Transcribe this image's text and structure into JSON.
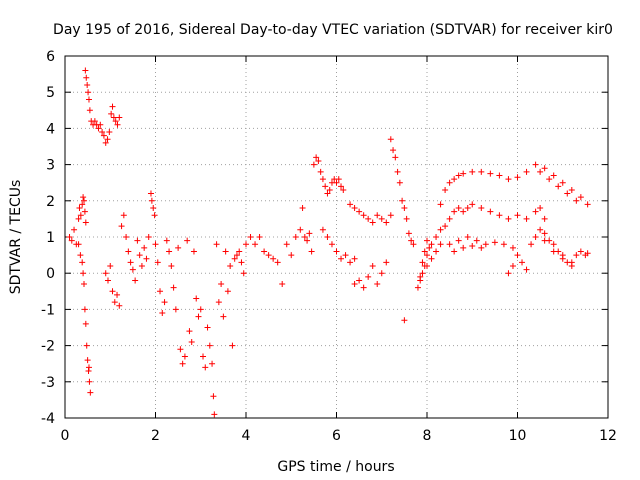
{
  "chart_data": {
    "type": "scatter",
    "title": "Day 195 of 2016, Sidereal Day-to-day VTEC variation (SDTVAR) for receiver kir0",
    "xlabel": "GPS time / hours",
    "ylabel": "SDTVAR / TECUs",
    "xlim": [
      0,
      12
    ],
    "ylim": [
      -4,
      6
    ],
    "xticks": [
      0,
      2,
      4,
      6,
      8,
      10,
      12
    ],
    "yticks": [
      -4,
      -3,
      -2,
      -1,
      0,
      1,
      2,
      3,
      4,
      5,
      6
    ],
    "grid": true,
    "marker": "plus",
    "color": "#ff0000",
    "series": [
      {
        "name": "kir0",
        "points": [
          [
            0.1,
            1.0
          ],
          [
            0.15,
            0.9
          ],
          [
            0.2,
            1.2
          ],
          [
            0.25,
            0.8
          ],
          [
            0.3,
            1.5
          ],
          [
            0.32,
            1.8
          ],
          [
            0.35,
            1.6
          ],
          [
            0.38,
            1.9
          ],
          [
            0.4,
            2.1
          ],
          [
            0.42,
            2.0
          ],
          [
            0.44,
            1.7
          ],
          [
            0.46,
            1.4
          ],
          [
            0.3,
            0.8
          ],
          [
            0.34,
            0.5
          ],
          [
            0.38,
            0.3
          ],
          [
            0.4,
            0.0
          ],
          [
            0.42,
            -0.3
          ],
          [
            0.44,
            -1.0
          ],
          [
            0.46,
            -1.4
          ],
          [
            0.48,
            -2.0
          ],
          [
            0.5,
            -2.4
          ],
          [
            0.52,
            -2.7
          ],
          [
            0.54,
            -3.0
          ],
          [
            0.56,
            -3.3
          ],
          [
            0.53,
            -2.6
          ],
          [
            0.45,
            5.6
          ],
          [
            0.47,
            5.4
          ],
          [
            0.49,
            5.2
          ],
          [
            0.51,
            5.0
          ],
          [
            0.53,
            4.8
          ],
          [
            0.55,
            4.5
          ],
          [
            0.58,
            4.2
          ],
          [
            0.62,
            4.1
          ],
          [
            0.66,
            4.2
          ],
          [
            0.7,
            4.1
          ],
          [
            0.74,
            4.0
          ],
          [
            0.78,
            4.1
          ],
          [
            0.82,
            3.9
          ],
          [
            0.86,
            3.8
          ],
          [
            0.9,
            3.6
          ],
          [
            0.94,
            3.7
          ],
          [
            0.98,
            3.9
          ],
          [
            1.02,
            4.4
          ],
          [
            1.05,
            4.6
          ],
          [
            1.08,
            4.3
          ],
          [
            1.12,
            4.2
          ],
          [
            1.16,
            4.1
          ],
          [
            1.2,
            4.3
          ],
          [
            0.9,
            0.0
          ],
          [
            0.95,
            -0.2
          ],
          [
            1.0,
            0.2
          ],
          [
            1.05,
            -0.5
          ],
          [
            1.1,
            -0.8
          ],
          [
            1.15,
            -0.6
          ],
          [
            1.2,
            -0.9
          ],
          [
            1.25,
            1.3
          ],
          [
            1.3,
            1.6
          ],
          [
            1.35,
            1.0
          ],
          [
            1.4,
            0.6
          ],
          [
            1.45,
            0.3
          ],
          [
            1.5,
            0.1
          ],
          [
            1.55,
            -0.2
          ],
          [
            1.6,
            0.9
          ],
          [
            1.65,
            0.5
          ],
          [
            1.7,
            0.2
          ],
          [
            1.75,
            0.7
          ],
          [
            1.8,
            0.4
          ],
          [
            1.85,
            1.0
          ],
          [
            1.9,
            2.2
          ],
          [
            1.92,
            2.0
          ],
          [
            1.95,
            1.8
          ],
          [
            1.98,
            1.6
          ],
          [
            2.0,
            0.8
          ],
          [
            2.05,
            0.3
          ],
          [
            2.1,
            -0.5
          ],
          [
            2.15,
            -1.1
          ],
          [
            2.2,
            -0.8
          ],
          [
            2.25,
            0.9
          ],
          [
            2.3,
            0.6
          ],
          [
            2.35,
            0.2
          ],
          [
            2.4,
            -0.4
          ],
          [
            2.45,
            -1.0
          ],
          [
            2.5,
            0.7
          ],
          [
            2.55,
            -2.1
          ],
          [
            2.6,
            -2.5
          ],
          [
            2.65,
            -2.3
          ],
          [
            2.7,
            0.9
          ],
          [
            2.75,
            -1.6
          ],
          [
            2.8,
            -1.9
          ],
          [
            2.85,
            0.6
          ],
          [
            2.9,
            -0.7
          ],
          [
            2.95,
            -1.2
          ],
          [
            3.0,
            -1.0
          ],
          [
            3.05,
            -2.3
          ],
          [
            3.1,
            -2.6
          ],
          [
            3.15,
            -1.5
          ],
          [
            3.2,
            -2.0
          ],
          [
            3.25,
            -2.5
          ],
          [
            3.28,
            -3.4
          ],
          [
            3.3,
            -3.9
          ],
          [
            3.35,
            0.8
          ],
          [
            3.4,
            -0.8
          ],
          [
            3.45,
            -0.3
          ],
          [
            3.5,
            -1.2
          ],
          [
            3.55,
            0.6
          ],
          [
            3.6,
            -0.5
          ],
          [
            3.65,
            0.2
          ],
          [
            3.7,
            -2.0
          ],
          [
            3.75,
            0.4
          ],
          [
            3.8,
            0.5
          ],
          [
            3.85,
            0.6
          ],
          [
            3.9,
            0.3
          ],
          [
            3.95,
            0.0
          ],
          [
            4.0,
            0.8
          ],
          [
            4.1,
            1.0
          ],
          [
            4.2,
            0.8
          ],
          [
            4.3,
            1.0
          ],
          [
            4.4,
            0.6
          ],
          [
            4.5,
            0.5
          ],
          [
            4.6,
            0.4
          ],
          [
            4.7,
            0.3
          ],
          [
            4.8,
            -0.3
          ],
          [
            4.9,
            0.8
          ],
          [
            5.0,
            0.5
          ],
          [
            5.1,
            1.0
          ],
          [
            5.2,
            1.2
          ],
          [
            5.25,
            1.8
          ],
          [
            5.3,
            1.0
          ],
          [
            5.35,
            0.9
          ],
          [
            5.4,
            1.1
          ],
          [
            5.45,
            0.6
          ],
          [
            5.5,
            3.0
          ],
          [
            5.55,
            3.2
          ],
          [
            5.6,
            3.1
          ],
          [
            5.65,
            2.8
          ],
          [
            5.7,
            2.6
          ],
          [
            5.75,
            2.4
          ],
          [
            5.8,
            2.2
          ],
          [
            5.85,
            2.3
          ],
          [
            5.9,
            2.5
          ],
          [
            5.95,
            2.6
          ],
          [
            6.0,
            2.5
          ],
          [
            6.05,
            2.6
          ],
          [
            6.1,
            2.4
          ],
          [
            6.15,
            2.3
          ],
          [
            5.7,
            1.2
          ],
          [
            5.8,
            1.0
          ],
          [
            5.9,
            0.8
          ],
          [
            6.0,
            0.6
          ],
          [
            6.1,
            0.4
          ],
          [
            6.2,
            0.5
          ],
          [
            6.3,
            0.3
          ],
          [
            6.4,
            0.4
          ],
          [
            6.3,
            1.9
          ],
          [
            6.4,
            1.8
          ],
          [
            6.5,
            1.7
          ],
          [
            6.6,
            1.6
          ],
          [
            6.7,
            1.5
          ],
          [
            6.8,
            1.4
          ],
          [
            6.9,
            1.6
          ],
          [
            7.0,
            1.5
          ],
          [
            7.1,
            1.4
          ],
          [
            7.2,
            1.6
          ],
          [
            6.4,
            -0.3
          ],
          [
            6.5,
            -0.2
          ],
          [
            6.6,
            -0.4
          ],
          [
            6.7,
            -0.1
          ],
          [
            6.8,
            0.2
          ],
          [
            6.9,
            -0.3
          ],
          [
            7.0,
            0.0
          ],
          [
            7.1,
            0.3
          ],
          [
            7.2,
            3.7
          ],
          [
            7.25,
            3.4
          ],
          [
            7.3,
            3.2
          ],
          [
            7.35,
            2.8
          ],
          [
            7.4,
            2.5
          ],
          [
            7.45,
            2.0
          ],
          [
            7.5,
            1.8
          ],
          [
            7.55,
            1.5
          ],
          [
            7.6,
            1.1
          ],
          [
            7.65,
            0.9
          ],
          [
            7.7,
            0.8
          ],
          [
            7.5,
            -1.3
          ],
          [
            7.8,
            -0.4
          ],
          [
            7.85,
            -0.2
          ],
          [
            7.9,
            0.3
          ],
          [
            7.95,
            0.6
          ],
          [
            8.0,
            0.9
          ],
          [
            8.05,
            0.7
          ],
          [
            8.1,
            0.8
          ],
          [
            8.2,
            1.0
          ],
          [
            8.3,
            1.2
          ],
          [
            8.4,
            1.3
          ],
          [
            8.5,
            1.5
          ],
          [
            8.6,
            1.7
          ],
          [
            8.7,
            1.8
          ],
          [
            8.8,
            1.7
          ],
          [
            8.9,
            1.8
          ],
          [
            9.0,
            1.9
          ],
          [
            9.2,
            1.8
          ],
          [
            9.4,
            1.7
          ],
          [
            9.6,
            1.6
          ],
          [
            9.8,
            1.5
          ],
          [
            10.0,
            1.6
          ],
          [
            10.2,
            1.5
          ],
          [
            10.4,
            1.7
          ],
          [
            10.5,
            1.8
          ],
          [
            10.6,
            1.5
          ],
          [
            8.3,
            1.9
          ],
          [
            8.4,
            2.3
          ],
          [
            8.5,
            2.5
          ],
          [
            8.6,
            2.6
          ],
          [
            8.7,
            2.7
          ],
          [
            8.8,
            2.75
          ],
          [
            9.0,
            2.8
          ],
          [
            9.2,
            2.8
          ],
          [
            9.4,
            2.75
          ],
          [
            9.6,
            2.7
          ],
          [
            9.8,
            2.6
          ],
          [
            10.0,
            2.65
          ],
          [
            10.2,
            2.8
          ],
          [
            10.4,
            3.0
          ],
          [
            10.6,
            2.9
          ],
          [
            10.8,
            2.7
          ],
          [
            11.0,
            2.5
          ],
          [
            11.2,
            2.3
          ],
          [
            11.4,
            2.1
          ],
          [
            11.55,
            1.9
          ],
          [
            10.5,
            2.8
          ],
          [
            10.7,
            2.6
          ],
          [
            10.9,
            2.4
          ],
          [
            11.1,
            2.2
          ],
          [
            11.3,
            2.0
          ],
          [
            8.5,
            0.8
          ],
          [
            8.7,
            0.9
          ],
          [
            8.9,
            1.0
          ],
          [
            9.1,
            0.9
          ],
          [
            9.3,
            0.8
          ],
          [
            9.5,
            0.85
          ],
          [
            9.7,
            0.8
          ],
          [
            9.9,
            0.7
          ],
          [
            10.0,
            0.5
          ],
          [
            10.1,
            0.3
          ],
          [
            10.2,
            0.1
          ],
          [
            9.9,
            0.2
          ],
          [
            9.8,
            0.0
          ],
          [
            10.3,
            0.8
          ],
          [
            10.4,
            1.0
          ],
          [
            10.5,
            1.2
          ],
          [
            10.6,
            1.1
          ],
          [
            10.7,
            0.9
          ],
          [
            10.8,
            0.8
          ],
          [
            10.9,
            0.6
          ],
          [
            11.0,
            0.4
          ],
          [
            11.1,
            0.3
          ],
          [
            11.2,
            0.2
          ],
          [
            11.3,
            0.5
          ],
          [
            11.4,
            0.6
          ],
          [
            11.5,
            0.5
          ],
          [
            11.55,
            0.55
          ],
          [
            10.6,
            0.9
          ],
          [
            10.8,
            0.6
          ],
          [
            11.0,
            0.5
          ],
          [
            11.2,
            0.3
          ],
          [
            8.0,
            0.2
          ],
          [
            8.1,
            0.4
          ],
          [
            8.2,
            0.6
          ],
          [
            8.3,
            0.8
          ],
          [
            7.85,
            -0.1
          ],
          [
            7.9,
            0.0
          ],
          [
            7.95,
            0.2
          ],
          [
            8.0,
            0.5
          ],
          [
            8.6,
            0.6
          ],
          [
            8.8,
            0.7
          ],
          [
            9.0,
            0.75
          ],
          [
            9.2,
            0.7
          ]
        ]
      }
    ]
  }
}
